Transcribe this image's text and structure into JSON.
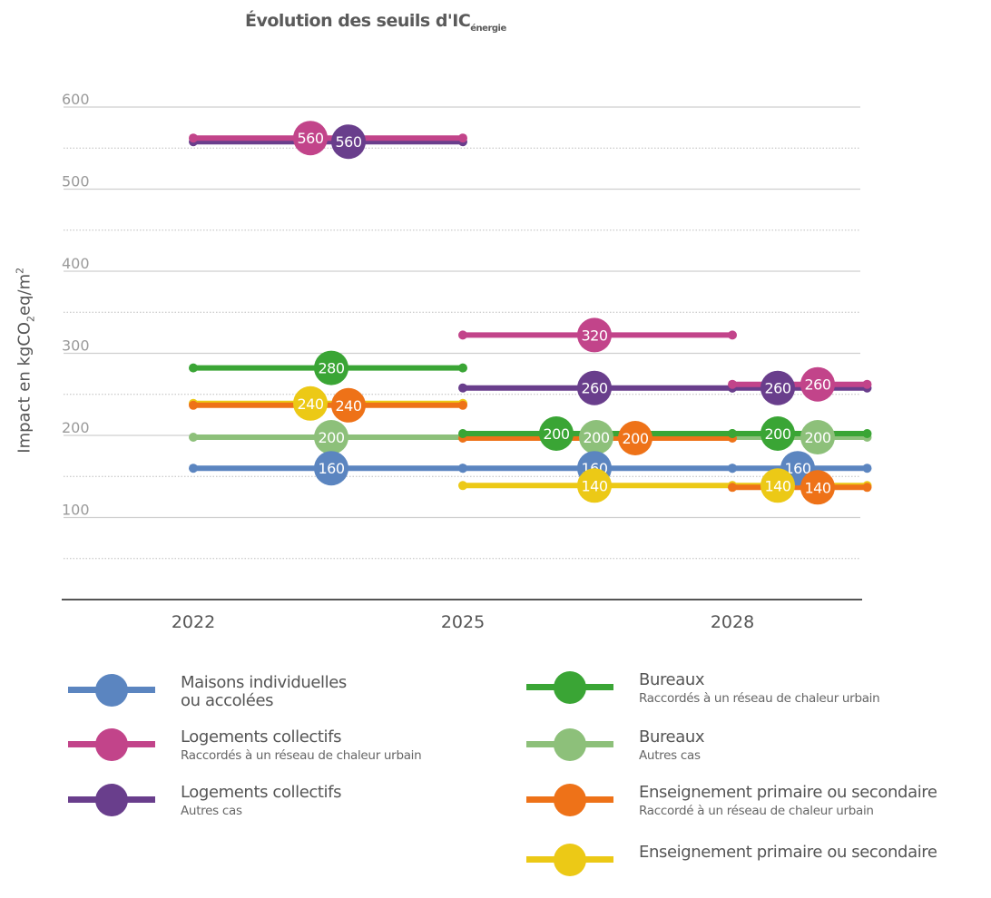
{
  "chart_data": {
    "type": "line",
    "title": {
      "main": "Évolution des seuils d'IC",
      "subscript": "énergie"
    },
    "ylabel": {
      "prefix": "Impact en kgCO",
      "sub": "2",
      "middle": "eq/m",
      "sup": "2"
    },
    "xlabel": "",
    "ylim": [
      0,
      600
    ],
    "yticks": [
      100,
      200,
      300,
      400,
      500,
      600
    ],
    "xticks": [
      2022,
      2025,
      2028
    ],
    "grid": true,
    "legend_position": "bottom",
    "series": [
      {
        "name": "Maisons individuelles ou accolées",
        "name_lines": [
          "Maisons individuelles",
          "ou accolées"
        ],
        "sub": "",
        "color": "#5b85c0",
        "segments": [
          {
            "from": 2022,
            "to": 2025,
            "value": 160
          },
          {
            "from": 2025,
            "to": 2028,
            "value": 160
          },
          {
            "from": 2028,
            "to": 2029.5,
            "value": 160
          }
        ]
      },
      {
        "name": "Logements collectifs",
        "name_lines": [
          "Logements collectifs"
        ],
        "sub": "Raccordés à un réseau de chaleur urbain",
        "color": "#c2448a",
        "segments": [
          {
            "from": 2022,
            "to": 2025,
            "value": 560
          },
          {
            "from": 2025,
            "to": 2028,
            "value": 320
          },
          {
            "from": 2028,
            "to": 2029.5,
            "value": 260
          }
        ]
      },
      {
        "name": "Logements collectifs",
        "name_lines": [
          "Logements collectifs"
        ],
        "sub": "Autres cas",
        "color": "#693e8c",
        "segments": [
          {
            "from": 2022,
            "to": 2025,
            "value": 560
          },
          {
            "from": 2025,
            "to": 2028,
            "value": 260
          },
          {
            "from": 2028,
            "to": 2029.5,
            "value": 260
          }
        ]
      },
      {
        "name": "Bureaux",
        "name_lines": [
          "Bureaux"
        ],
        "sub": "Raccordés à un réseau de chaleur urbain",
        "color": "#3aa535",
        "segments": [
          {
            "from": 2022,
            "to": 2025,
            "value": 280
          },
          {
            "from": 2025,
            "to": 2028,
            "value": 200
          },
          {
            "from": 2028,
            "to": 2029.5,
            "value": 200
          }
        ]
      },
      {
        "name": "Bureaux",
        "name_lines": [
          "Bureaux"
        ],
        "sub": "Autres cas",
        "color": "#8dc07a",
        "segments": [
          {
            "from": 2022,
            "to": 2025,
            "value": 200
          },
          {
            "from": 2025,
            "to": 2028,
            "value": 200
          },
          {
            "from": 2028,
            "to": 2029.5,
            "value": 200
          }
        ]
      },
      {
        "name": "Enseignement primaire ou secondaire",
        "name_lines": [
          "Enseignement primaire ou secondaire"
        ],
        "sub": "Raccordé à un réseau de chaleur urbain",
        "color": "#ee7218",
        "segments": [
          {
            "from": 2022,
            "to": 2025,
            "value": 240
          },
          {
            "from": 2025,
            "to": 2028,
            "value": 200
          },
          {
            "from": 2028,
            "to": 2029.5,
            "value": 140
          }
        ]
      },
      {
        "name": "Enseignement primaire ou secondaire",
        "name_lines": [
          "Enseignement primaire ou secondaire"
        ],
        "sub": "",
        "color": "#ecc916",
        "segments": [
          {
            "from": 2022,
            "to": 2025,
            "value": 240
          },
          {
            "from": 2025,
            "to": 2028,
            "value": 140
          },
          {
            "from": 2028,
            "to": 2029.5,
            "value": 140
          }
        ]
      }
    ]
  }
}
